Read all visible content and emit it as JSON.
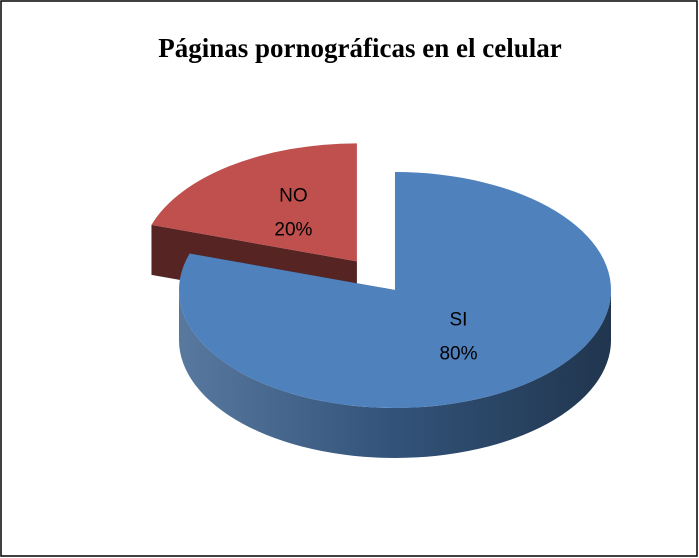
{
  "chart_data": {
    "type": "pie",
    "title": "Páginas pornográficas en el celular",
    "categories": [
      "SI",
      "NO"
    ],
    "values": [
      80,
      20
    ],
    "value_labels": [
      "80%",
      "20%"
    ],
    "colors": [
      "#4f81bd",
      "#c0504d"
    ],
    "exploded": [
      false,
      true
    ]
  }
}
